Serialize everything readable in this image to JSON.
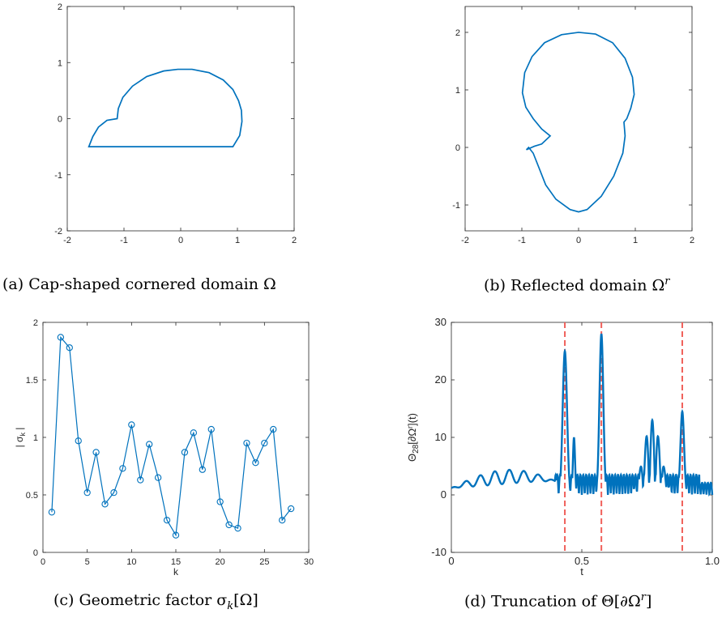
{
  "captions": {
    "a": "(a) Cap-shaped cornered domain Ω",
    "b_prefix": "(b) Reflected domain Ω",
    "b_sup": "r",
    "c_prefix": "(c) Geometric factor σ",
    "c_sub": "k",
    "c_suffix": "[Ω]",
    "d_prefix": "(d) Truncation of Θ[∂Ω",
    "d_sup": "r",
    "d_suffix": "]"
  },
  "panel_c": {
    "ylabel": "| σ",
    "ylabel_sub": "k",
    "ylabel_end": " |",
    "xlabel": "k"
  },
  "panel_d": {
    "ylabel": "Θ",
    "ylabel_sub": "28",
    "ylabel_end": "[∂Ω",
    "ylabel_sup": "r",
    "ylabel_tail": "](t)",
    "xlabel": "t"
  },
  "chart_data": [
    {
      "type": "line",
      "xlim": [
        -2,
        2
      ],
      "ylim": [
        -2,
        2
      ],
      "xticks": [
        "-2",
        "-1",
        "0",
        "1",
        "2"
      ],
      "yticks": [
        "-2",
        "-1",
        "0",
        "1",
        "2"
      ],
      "line_color": "#0072BD",
      "curve": [
        [
          -1.62,
          -0.5
        ],
        [
          0.92,
          -0.5
        ],
        [
          1.04,
          -0.3
        ],
        [
          1.08,
          -0.05
        ],
        [
          1.07,
          0.15
        ],
        [
          1.02,
          0.32
        ],
        [
          0.92,
          0.52
        ],
        [
          0.75,
          0.69
        ],
        [
          0.5,
          0.82
        ],
        [
          0.2,
          0.88
        ],
        [
          -0.05,
          0.88
        ],
        [
          -0.3,
          0.85
        ],
        [
          -0.6,
          0.75
        ],
        [
          -0.85,
          0.58
        ],
        [
          -1.02,
          0.38
        ],
        [
          -1.1,
          0.18
        ],
        [
          -1.12,
          0.0
        ],
        [
          -1.3,
          -0.03
        ],
        [
          -1.45,
          -0.15
        ],
        [
          -1.55,
          -0.32
        ],
        [
          -1.62,
          -0.5
        ]
      ]
    },
    {
      "type": "line",
      "xlim": [
        -2,
        2
      ],
      "ylim": [
        -1.45,
        2.45
      ],
      "xticks": [
        "-2",
        "-1",
        "0",
        "1",
        "2"
      ],
      "yticks": [
        "-1",
        "0",
        "1",
        "2"
      ],
      "line_color": "#0072BD",
      "curve": [
        [
          0.0,
          2.0
        ],
        [
          0.3,
          1.97
        ],
        [
          0.6,
          1.82
        ],
        [
          0.82,
          1.55
        ],
        [
          0.95,
          1.22
        ],
        [
          0.98,
          0.92
        ],
        [
          0.92,
          0.68
        ],
        [
          0.85,
          0.5
        ],
        [
          0.8,
          0.44
        ],
        [
          0.82,
          0.2
        ],
        [
          0.78,
          -0.1
        ],
        [
          0.62,
          -0.5
        ],
        [
          0.4,
          -0.85
        ],
        [
          0.15,
          -1.08
        ],
        [
          0.0,
          -1.12
        ],
        [
          -0.15,
          -1.08
        ],
        [
          -0.4,
          -0.9
        ],
        [
          -0.58,
          -0.65
        ],
        [
          -0.7,
          -0.35
        ],
        [
          -0.8,
          -0.1
        ],
        [
          -0.88,
          0.0
        ],
        [
          -0.92,
          -0.04
        ],
        [
          -0.78,
          0.02
        ],
        [
          -0.65,
          0.06
        ],
        [
          -0.5,
          0.2
        ],
        [
          -0.65,
          0.32
        ],
        [
          -0.8,
          0.5
        ],
        [
          -0.93,
          0.7
        ],
        [
          -0.99,
          0.95
        ],
        [
          -0.95,
          1.3
        ],
        [
          -0.82,
          1.58
        ],
        [
          -0.6,
          1.82
        ],
        [
          -0.3,
          1.96
        ],
        [
          0.0,
          2.0
        ]
      ]
    },
    {
      "type": "line",
      "xlim": [
        0,
        30
      ],
      "ylim": [
        0,
        2
      ],
      "xticks": [
        "0",
        "5",
        "10",
        "15",
        "20",
        "25",
        "30"
      ],
      "yticks": [
        "0",
        "0.5",
        "1",
        "1.5",
        "2"
      ],
      "xlabel": "k",
      "ylabel": "| σk |",
      "markers": "circle",
      "line_color": "#0072BD",
      "x": [
        1,
        2,
        3,
        4,
        5,
        6,
        7,
        8,
        9,
        10,
        11,
        12,
        13,
        14,
        15,
        16,
        17,
        18,
        19,
        20,
        21,
        22,
        23,
        24,
        25,
        26,
        27,
        28
      ],
      "values": [
        0.35,
        1.87,
        1.78,
        0.97,
        0.52,
        0.87,
        0.42,
        0.52,
        0.73,
        1.11,
        0.63,
        0.94,
        0.65,
        0.28,
        0.15,
        0.87,
        1.04,
        0.72,
        1.07,
        0.44,
        0.24,
        0.21,
        0.95,
        0.78,
        0.95,
        1.07,
        0.28,
        0.38
      ]
    },
    {
      "type": "line",
      "xlim": [
        0,
        1
      ],
      "ylim": [
        -10,
        30
      ],
      "xticks": [
        "0",
        "0.5",
        "1.0"
      ],
      "yticks": [
        "-10",
        "0",
        "10",
        "20",
        "30"
      ],
      "xlabel": "t",
      "ylabel": "Θ28[∂Ωr](t)",
      "line_color": "#0072BD",
      "vlines": [
        0.435,
        0.575,
        0.885
      ],
      "vline_color": "#F0605A",
      "peaks": [
        {
          "t": 0.435,
          "height": 25.0,
          "width": 0.014
        },
        {
          "t": 0.575,
          "height": 28.0,
          "width": 0.012
        },
        {
          "t": 0.885,
          "height": 14.5,
          "width": 0.011
        },
        {
          "t": 0.77,
          "height": 13.0,
          "width": 0.045
        },
        {
          "t": 0.47,
          "height": 10.0,
          "width": 0.006
        },
        {
          "t": 0.4,
          "height": 3.5,
          "width": 0.005
        }
      ]
    }
  ]
}
